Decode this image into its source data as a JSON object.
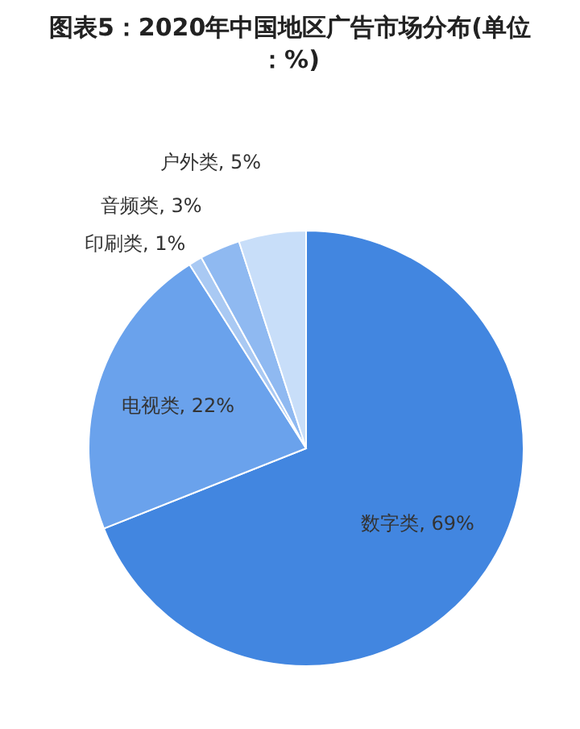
{
  "chart_data": {
    "type": "pie",
    "title": "图表5：2020年中国地区广告市场分布(单位：%)",
    "categories": [
      "数字类",
      "电视类",
      "印刷类",
      "音频类",
      "户外类"
    ],
    "values": [
      69,
      22,
      1,
      3,
      5
    ],
    "value_labels": [
      "69%",
      "22%",
      "1%",
      "3%",
      "5%"
    ],
    "colors": [
      "#4286e0",
      "#6aa2ec",
      "#a9c9f3",
      "#8fb9f1",
      "#c8def9"
    ]
  }
}
